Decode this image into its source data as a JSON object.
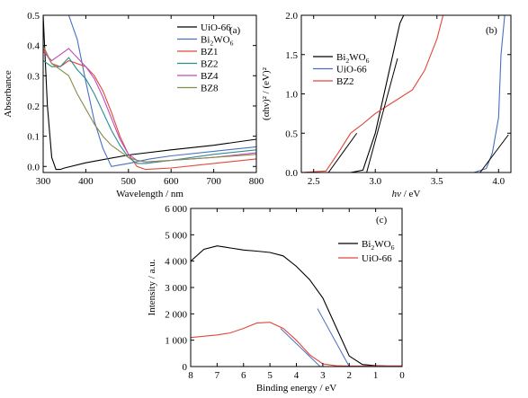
{
  "colors": {
    "black": "#000000",
    "blue": "#4a6fc0",
    "red": "#e0483c",
    "teal": "#2a8c8c",
    "magenta": "#c04cc0",
    "olive": "#8c8a4a"
  },
  "chart_data": [
    {
      "panel": "(a)",
      "type": "line",
      "xlabel": "Wavelength / nm",
      "ylabel": "Absorbance",
      "xlim": [
        300,
        800
      ],
      "ylim": [
        -0.02,
        0.5
      ],
      "xticks": [
        "300",
        "400",
        "500",
        "600",
        "700",
        "800"
      ],
      "yticks": [
        "0.0",
        "0.1",
        "0.2",
        "0.3",
        "0.4",
        "0.5"
      ],
      "legend_position": "top-right",
      "series": [
        {
          "name": "UiO-66",
          "subscripts": false,
          "color": "black",
          "x": [
            300,
            310,
            320,
            330,
            340,
            350,
            400,
            500,
            600,
            700,
            800
          ],
          "y": [
            0.5,
            0.2,
            0.03,
            -0.01,
            -0.01,
            -0.005,
            0.012,
            0.038,
            0.055,
            0.07,
            0.09
          ]
        },
        {
          "name": "Bi2WO6",
          "display": [
            "Bi",
            "2",
            "WO",
            "6"
          ],
          "color": "blue",
          "x": [
            360,
            380,
            400,
            420,
            440,
            460,
            500,
            550,
            600,
            700,
            800
          ],
          "y": [
            0.5,
            0.42,
            0.28,
            0.15,
            0.06,
            0.0,
            0.01,
            0.025,
            0.035,
            0.05,
            0.065
          ]
        },
        {
          "name": "BZ1",
          "color": "red",
          "x": [
            300,
            320,
            340,
            360,
            380,
            400,
            420,
            440,
            460,
            480,
            500,
            520,
            540,
            600,
            700,
            800
          ],
          "y": [
            0.39,
            0.34,
            0.33,
            0.35,
            0.34,
            0.33,
            0.3,
            0.25,
            0.18,
            0.1,
            0.04,
            0.0,
            -0.01,
            -0.005,
            0.01,
            0.025
          ]
        },
        {
          "name": "BZ2",
          "color": "teal",
          "x": [
            300,
            320,
            340,
            360,
            380,
            400,
            420,
            440,
            460,
            480,
            500,
            520,
            540,
            600,
            700,
            800
          ],
          "y": [
            0.35,
            0.33,
            0.33,
            0.36,
            0.32,
            0.29,
            0.24,
            0.18,
            0.12,
            0.07,
            0.03,
            0.01,
            0.01,
            0.02,
            0.04,
            0.055
          ]
        },
        {
          "name": "BZ4",
          "color": "magenta",
          "x": [
            300,
            320,
            340,
            360,
            380,
            400,
            420,
            440,
            460,
            480,
            500,
            520,
            540,
            600,
            700,
            800
          ],
          "y": [
            0.38,
            0.35,
            0.37,
            0.39,
            0.36,
            0.33,
            0.29,
            0.23,
            0.16,
            0.09,
            0.04,
            0.02,
            0.015,
            0.02,
            0.03,
            0.045
          ]
        },
        {
          "name": "BZ8",
          "color": "olive",
          "x": [
            300,
            320,
            340,
            360,
            380,
            400,
            420,
            440,
            460,
            480,
            500,
            520,
            540,
            600,
            700,
            800
          ],
          "y": [
            0.4,
            0.34,
            0.32,
            0.3,
            0.24,
            0.19,
            0.14,
            0.1,
            0.07,
            0.05,
            0.03,
            0.02,
            0.015,
            0.02,
            0.03,
            0.04
          ]
        }
      ]
    },
    {
      "panel": "(b)",
      "type": "line",
      "xlabel": "hv / eV",
      "ylabel": "(αhν)² / (eV)²",
      "xlim": [
        2.4,
        4.1
      ],
      "ylim": [
        0,
        2.0
      ],
      "xticks": [
        "2.5",
        "3.0",
        "3.5",
        "4.0"
      ],
      "yticks": [
        "0.0",
        "0.5",
        "1.0",
        "1.5",
        "2.0"
      ],
      "legend_position": "top-left",
      "series": [
        {
          "name": "Bi2WO6",
          "display": [
            "Bi",
            "2",
            "WO",
            "6"
          ],
          "color": "black",
          "x": [
            2.4,
            2.8,
            2.9,
            3.0,
            3.1,
            3.2,
            3.23
          ],
          "y": [
            0,
            0,
            0.03,
            0.5,
            1.2,
            1.9,
            2.0
          ]
        },
        {
          "name": "UiO-66",
          "color": "blue",
          "x": [
            2.4,
            3.8,
            3.9,
            3.95,
            4.0,
            4.02,
            4.05
          ],
          "y": [
            0,
            0,
            0.05,
            0.25,
            0.7,
            1.5,
            2.0
          ]
        },
        {
          "name": "BZ2",
          "color": "red",
          "x": [
            2.4,
            2.6,
            2.7,
            2.8,
            2.9,
            3.0,
            3.1,
            3.2,
            3.3,
            3.4,
            3.5,
            3.55
          ],
          "y": [
            0,
            0.02,
            0.25,
            0.5,
            0.62,
            0.75,
            0.85,
            0.95,
            1.05,
            1.3,
            1.7,
            2.0
          ]
        }
      ],
      "fit_lines": [
        {
          "color": "black",
          "x": [
            2.62,
            2.85
          ],
          "y": [
            0,
            0.5
          ]
        },
        {
          "color": "black",
          "x": [
            2.93,
            3.18
          ],
          "y": [
            0,
            1.45
          ]
        },
        {
          "color": "black",
          "x": [
            3.85,
            4.08
          ],
          "y": [
            0,
            0.48
          ]
        }
      ]
    },
    {
      "panel": "(c)",
      "type": "line",
      "xlabel": "Binding energy / eV",
      "ylabel": "Intensity / a.u.",
      "xlim": [
        8,
        0
      ],
      "ylim": [
        0,
        6000
      ],
      "xticks": [
        "8",
        "7",
        "6",
        "5",
        "4",
        "3",
        "2",
        "1",
        "0"
      ],
      "yticks": [
        "0",
        "1 000",
        "2 000",
        "3 000",
        "4 000",
        "5 000",
        "6 000"
      ],
      "legend_position": "top-right",
      "series": [
        {
          "name": "Bi2WO6",
          "display": [
            "Bi",
            "2",
            "WO",
            "6"
          ],
          "color": "black",
          "x": [
            8,
            7.5,
            7,
            6.5,
            6,
            5.5,
            5,
            4.5,
            4,
            3.5,
            3,
            2.5,
            2,
            1.5,
            1,
            0.5,
            0
          ],
          "y": [
            4000,
            4450,
            4580,
            4500,
            4420,
            4380,
            4330,
            4200,
            3800,
            3300,
            2600,
            1500,
            400,
            80,
            30,
            20,
            20
          ]
        },
        {
          "name": "UiO-66",
          "color": "red",
          "x": [
            8,
            7,
            6.5,
            6,
            5.5,
            5,
            4.5,
            4,
            3.5,
            3,
            2.5,
            2,
            1,
            0
          ],
          "y": [
            1100,
            1200,
            1280,
            1450,
            1650,
            1680,
            1450,
            1000,
            450,
            100,
            30,
            20,
            20,
            20
          ]
        }
      ],
      "fit_lines": [
        {
          "color": "blue",
          "x": [
            3.2,
            2.0
          ],
          "y": [
            2200,
            0
          ]
        },
        {
          "color": "blue",
          "x": [
            4.6,
            3.1
          ],
          "y": [
            1450,
            0
          ]
        }
      ]
    }
  ],
  "panel_labels": {
    "a": "(a)",
    "b": "(b)",
    "c": "(c)"
  }
}
